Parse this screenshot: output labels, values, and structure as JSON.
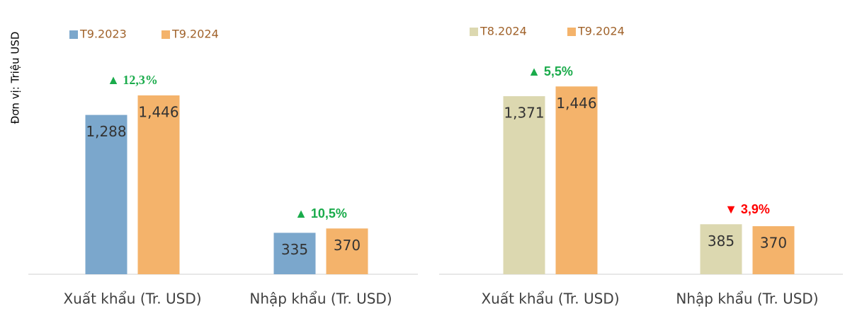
{
  "y_label": "Đơn vị: Triệu USD",
  "chart_data": [
    {
      "type": "bar",
      "categories": [
        "Xuất khẩu (Tr. USD)",
        "Nhập khẩu (Tr. USD)"
      ],
      "series": [
        {
          "name": "T9.2023",
          "color": "#7ba7cc",
          "values": [
            1288,
            335
          ],
          "value_labels": [
            "1,288",
            "335"
          ]
        },
        {
          "name": "T9.2024",
          "color": "#f4b36b",
          "values": [
            1446,
            370
          ],
          "value_labels": [
            "1,446",
            "370"
          ]
        }
      ],
      "annotations": [
        {
          "text": "▲ 12,3%",
          "color": "#1aab4b"
        },
        {
          "text": "▲ 10,5%",
          "color": "#1aab4b"
        }
      ],
      "ylim": [
        0,
        1600
      ]
    },
    {
      "type": "bar",
      "categories": [
        "Xuất khẩu (Tr. USD)",
        "Nhập khẩu (Tr. USD)"
      ],
      "series": [
        {
          "name": "T8.2024",
          "color": "#dcd8b0",
          "values": [
            1371,
            385
          ],
          "value_labels": [
            "1,371",
            "385"
          ]
        },
        {
          "name": "T9.2024",
          "color": "#f4b36b",
          "values": [
            1446,
            370
          ],
          "value_labels": [
            "1,446",
            "370"
          ]
        }
      ],
      "annotations": [
        {
          "text": "▲ 5,5%",
          "color": "#1aab4b"
        },
        {
          "text": "▼ 3,9%",
          "color": "#ff0000"
        }
      ],
      "ylim": [
        0,
        1600
      ]
    }
  ]
}
